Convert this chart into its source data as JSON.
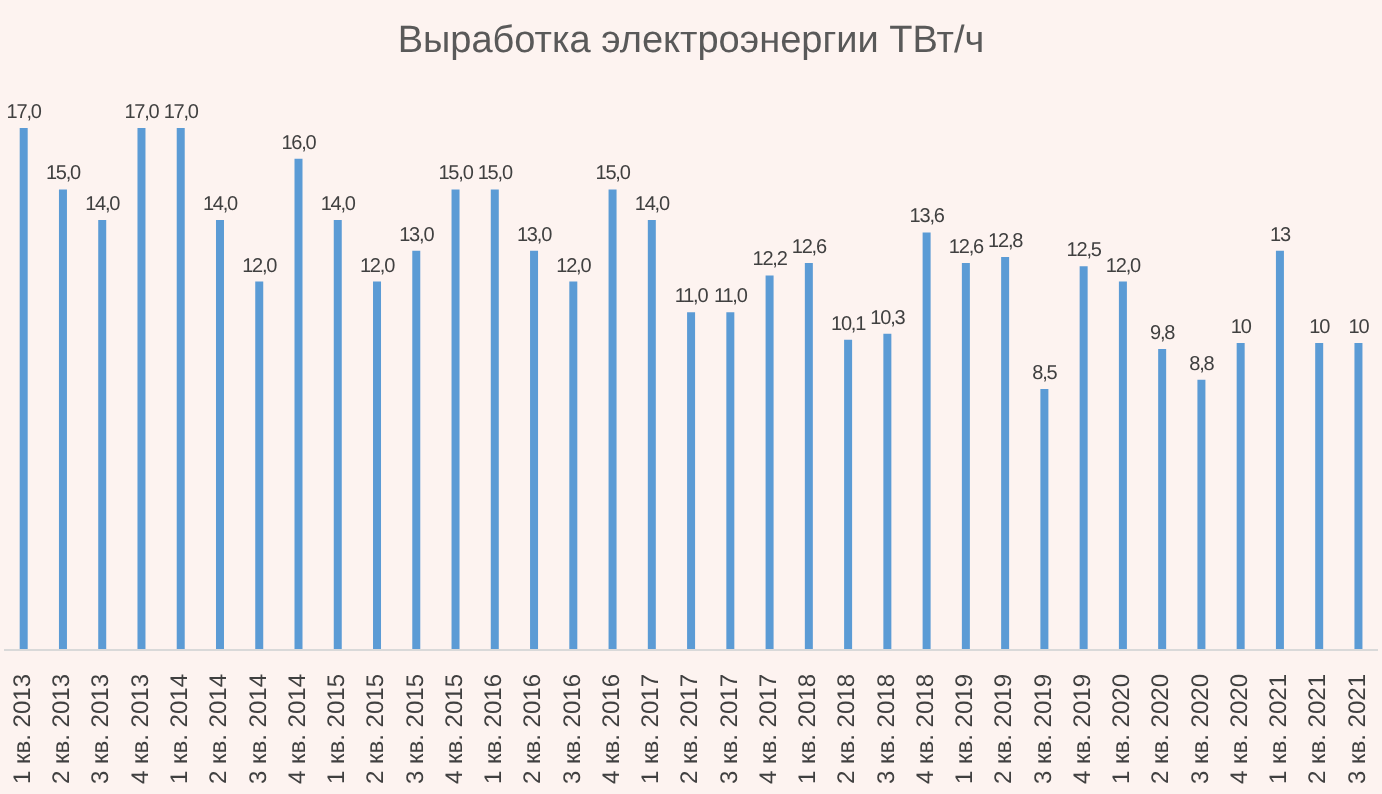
{
  "chart_data": {
    "type": "bar",
    "title": "Выработка электроэнергии ТВт/ч",
    "categories": [
      "1 кв. 2013",
      "2 кв. 2013",
      "3 кв. 2013",
      "4 кв. 2013",
      "1 кв. 2014",
      "2 кв. 2014",
      "3 кв. 2014",
      "4 кв. 2014",
      "1 кв. 2015",
      "2 кв. 2015",
      "3 кв. 2015",
      "4 кв. 2015",
      "1 кв. 2016",
      "2 кв. 2016",
      "3 кв. 2016",
      "4 кв. 2016",
      "1 кв. 2017",
      "2 кв. 2017",
      "3 кв. 2017",
      "4 кв. 2017",
      "1 кв. 2018",
      "2 кв. 2018",
      "3 кв. 2018",
      "4 кв. 2018",
      "1 кв. 2019",
      "2 кв. 2019",
      "3 кв. 2019",
      "4 кв. 2019",
      "1 кв. 2020",
      "2 кв. 2020",
      "3 кв. 2020",
      "4 кв. 2020",
      "1 кв. 2021",
      "2 кв. 2021",
      "3 кв. 2021"
    ],
    "values": [
      17,
      15,
      14,
      17,
      17,
      14,
      12,
      16,
      14,
      12,
      13,
      15,
      15,
      13,
      12,
      15,
      14,
      11,
      11,
      12.2,
      12.6,
      10.1,
      10.3,
      13.6,
      12.6,
      12.8,
      8.5,
      12.5,
      12,
      9.8,
      8.8,
      10,
      13,
      10,
      10
    ],
    "value_labels": [
      "17,0",
      "15,0",
      "14,0",
      "17,0",
      "17,0",
      "14,0",
      "12,0",
      "16,0",
      "14,0",
      "12,0",
      "13,0",
      "15,0",
      "15,0",
      "13,0",
      "12,0",
      "15,0",
      "14,0",
      "11,0",
      "11,0",
      "12,2",
      "12,6",
      "10,1",
      "10,3",
      "13,6",
      "12,6",
      "12,8",
      "8,5",
      "12,5",
      "12,0",
      "9,8",
      "8,8",
      "10",
      "13",
      "10",
      "10"
    ],
    "color": "#5b9bd5",
    "grid": false,
    "legend": false
  }
}
